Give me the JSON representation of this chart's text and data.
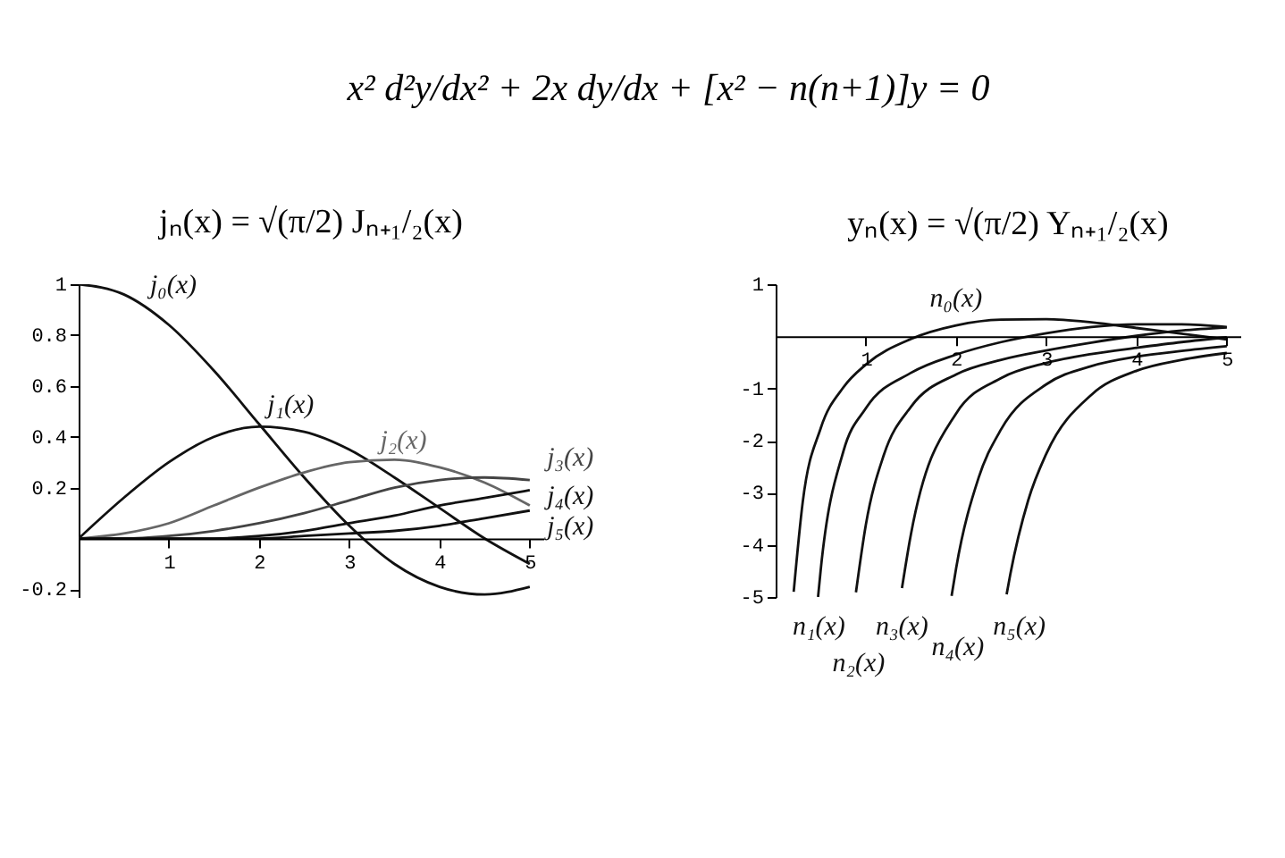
{
  "chart_data": [
    {
      "type": "other",
      "title": "x² d²y/dx² + 2x dy/dx + [x² − n(n+1)]y = 0"
    },
    {
      "type": "line",
      "title": "jₙ(x) = √(π/2) Jₙ₊₁/₂(x)",
      "x": [
        0,
        0.5,
        1,
        1.5,
        2,
        2.5,
        3,
        3.5,
        4,
        4.5,
        5
      ],
      "xlim": [
        0,
        5.15
      ],
      "xticks": [
        1,
        2,
        3,
        4,
        5
      ],
      "ylim": [
        -0.23,
        1
      ],
      "yticks": [
        -0.2,
        0.2,
        0.4,
        0.6,
        0.8,
        1
      ],
      "series": [
        {
          "name": "j₀(x)",
          "color": "#111111",
          "values": [
            1,
            0.96,
            0.84,
            0.66,
            0.45,
            0.24,
            0.05,
            -0.1,
            -0.19,
            -0.22,
            -0.19
          ]
        },
        {
          "name": "j₁(x)",
          "color": "#111111",
          "values": [
            0,
            0.16,
            0.3,
            0.4,
            0.44,
            0.42,
            0.35,
            0.24,
            0.12,
            0.0,
            -0.1
          ]
        },
        {
          "name": "j₂(x)",
          "color": "#666666",
          "values": [
            0,
            0.02,
            0.06,
            0.13,
            0.2,
            0.26,
            0.3,
            0.31,
            0.28,
            0.22,
            0.13
          ]
        },
        {
          "name": "j₃(x)",
          "color": "#444444",
          "values": [
            0,
            0.0,
            0.01,
            0.03,
            0.06,
            0.1,
            0.15,
            0.2,
            0.23,
            0.24,
            0.23
          ]
        },
        {
          "name": "j₄(x)",
          "color": "#111111",
          "values": [
            0,
            0,
            0,
            0,
            0.01,
            0.03,
            0.06,
            0.09,
            0.13,
            0.16,
            0.19
          ]
        },
        {
          "name": "j₅(x)",
          "color": "#111111",
          "values": [
            0,
            0,
            0,
            0,
            0,
            0.01,
            0.02,
            0.03,
            0.05,
            0.08,
            0.11
          ]
        }
      ]
    },
    {
      "type": "line",
      "title": "yₙ(x) = √(π/2) Yₙ₊₁/₂(x)",
      "xlim": [
        0,
        5.15
      ],
      "xticks": [
        1,
        2,
        3,
        4,
        5
      ],
      "ylim": [
        -5,
        1
      ],
      "yticks": [
        1,
        -1,
        -2,
        -3,
        -4,
        -5
      ],
      "series": [
        {
          "name": "n₀(x)",
          "color": "#111111",
          "x": [
            0.2,
            0.3,
            0.5,
            0.75,
            1,
            1.5,
            2,
            2.5,
            3,
            3.5,
            4,
            4.5,
            5
          ],
          "values": [
            -4.9,
            -3.18,
            -1.76,
            -0.98,
            -0.54,
            -0.05,
            0.21,
            0.32,
            0.33,
            0.27,
            0.16,
            0.05,
            -0.06
          ]
        },
        {
          "name": "n₁(x)",
          "color": "#111111",
          "x": [
            0.47,
            0.5,
            0.75,
            1,
            1.5,
            2,
            2.5,
            3,
            3.5,
            4,
            4.5,
            5
          ],
          "values": [
            -5.0,
            -4.47,
            -2.21,
            -1.38,
            -0.7,
            -0.35,
            -0.11,
            0.06,
            0.18,
            0.23,
            0.23,
            0.18
          ]
        },
        {
          "name": "n₂(x)",
          "color": "#111111",
          "x": [
            0.89,
            1,
            1.2,
            1.5,
            2,
            2.5,
            3,
            3.5,
            4,
            4.5,
            5
          ],
          "values": [
            -4.91,
            -3.61,
            -2.27,
            -1.35,
            -0.73,
            -0.45,
            -0.27,
            -0.12,
            0.01,
            0.11,
            0.17
          ]
        },
        {
          "name": "n₃(x)",
          "color": "#111111",
          "x": [
            1.4,
            1.5,
            2,
            2.5,
            3,
            3.5,
            4,
            4.5,
            5
          ],
          "values": [
            -4.83,
            -3.79,
            -1.48,
            -0.8,
            -0.51,
            -0.34,
            -0.22,
            -0.11,
            -0.02
          ]
        },
        {
          "name": "n₄(x)",
          "color": "#111111",
          "x": [
            1.95,
            2,
            2.25,
            2.5,
            3,
            3.5,
            4,
            4.5,
            5
          ],
          "values": [
            -4.98,
            -4.45,
            -2.71,
            -1.78,
            -0.92,
            -0.57,
            -0.39,
            -0.28,
            -0.19
          ]
        },
        {
          "name": "n₅(x)",
          "color": "#111111",
          "x": [
            2.56,
            2.6,
            2.8,
            3,
            3.5,
            4,
            4.5,
            5
          ],
          "values": [
            -4.95,
            -4.57,
            -3.14,
            -2.25,
            -1.12,
            -0.66,
            -0.45,
            -0.32
          ]
        }
      ]
    }
  ]
}
